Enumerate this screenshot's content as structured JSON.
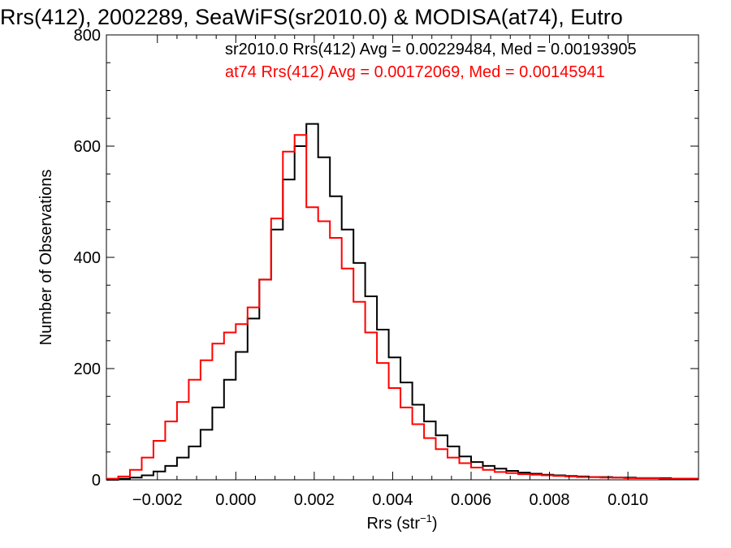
{
  "chart_data": {
    "type": "line",
    "title": "Rrs(412), 2002289, SeaWiFS(sr2010.0) & MODISA(at74), Eutro",
    "xlabel_base": "Rrs (str",
    "xlabel_sup": "−1",
    "xlabel_close": ")",
    "ylabel": "Number of Observations",
    "xlim": [
      -0.0033,
      0.0118
    ],
    "ylim": [
      0,
      800
    ],
    "xticks": [
      -0.002,
      0.0,
      0.002,
      0.004,
      0.006,
      0.008,
      0.01
    ],
    "xtick_labels": [
      "−0.002",
      "0.000",
      "0.002",
      "0.004",
      "0.006",
      "0.008",
      "0.010"
    ],
    "yticks": [
      0,
      200,
      400,
      600,
      800
    ],
    "ytick_labels": [
      "0",
      "200",
      "400",
      "600",
      "800"
    ],
    "grid": false,
    "legend_placement": "top",
    "series": [
      {
        "name": "sr2010.0 Rrs(412) Avg = 0.00229484, Med = 0.00193905",
        "color": "#000000",
        "x": [
          -0.0033,
          -0.003,
          -0.0027,
          -0.0024,
          -0.0021,
          -0.0018,
          -0.0015,
          -0.0012,
          -0.0009,
          -0.0006,
          -0.0003,
          0.0,
          0.0003,
          0.0006,
          0.0009,
          0.0012,
          0.0015,
          0.0018,
          0.0021,
          0.0024,
          0.0027,
          0.003,
          0.0033,
          0.0036,
          0.0039,
          0.0042,
          0.0045,
          0.0048,
          0.0051,
          0.0054,
          0.0057,
          0.006,
          0.0063,
          0.0066,
          0.0069,
          0.0072,
          0.0075,
          0.0078,
          0.0081,
          0.0084,
          0.0087,
          0.009,
          0.0093,
          0.0096,
          0.0099,
          0.0102,
          0.0105,
          0.0108,
          0.0111,
          0.0114,
          0.0117
        ],
        "y": [
          0,
          2,
          4,
          8,
          15,
          25,
          40,
          60,
          90,
          130,
          180,
          230,
          290,
          360,
          450,
          540,
          600,
          640,
          580,
          510,
          450,
          390,
          330,
          270,
          220,
          175,
          135,
          105,
          80,
          60,
          42,
          32,
          25,
          20,
          16,
          13,
          11,
          9,
          8,
          7,
          6,
          5,
          5,
          4,
          4,
          3,
          3,
          3,
          2,
          2,
          2
        ]
      },
      {
        "name": "at74 Rrs(412) Avg = 0.00172069, Med = 0.00145941",
        "color": "#ff0000",
        "x": [
          -0.0033,
          -0.003,
          -0.0027,
          -0.0024,
          -0.0021,
          -0.0018,
          -0.0015,
          -0.0012,
          -0.0009,
          -0.0006,
          -0.0003,
          0.0,
          0.0003,
          0.0006,
          0.0009,
          0.0012,
          0.0015,
          0.0018,
          0.0021,
          0.0024,
          0.0027,
          0.003,
          0.0033,
          0.0036,
          0.0039,
          0.0042,
          0.0045,
          0.0048,
          0.0051,
          0.0054,
          0.0057,
          0.006,
          0.0063,
          0.0066,
          0.0069,
          0.0072,
          0.0075,
          0.0078,
          0.0081,
          0.0084,
          0.0087,
          0.009,
          0.0093,
          0.0096,
          0.0099,
          0.0102,
          0.0105,
          0.0108,
          0.0111,
          0.0114,
          0.0117
        ],
        "y": [
          2,
          6,
          18,
          40,
          70,
          105,
          140,
          180,
          215,
          245,
          265,
          280,
          310,
          360,
          470,
          590,
          620,
          490,
          465,
          435,
          380,
          320,
          265,
          210,
          165,
          130,
          100,
          75,
          55,
          40,
          30,
          22,
          18,
          14,
          12,
          10,
          9,
          8,
          7,
          6,
          5,
          5,
          4,
          4,
          3,
          3,
          3,
          2,
          2,
          2,
          2
        ]
      }
    ]
  }
}
